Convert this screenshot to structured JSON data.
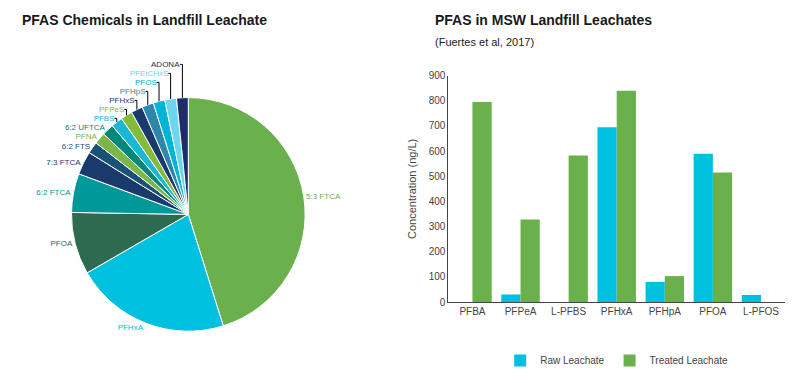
{
  "chart_data": [
    {
      "type": "pie",
      "title": "PFAS Chemicals in Landfill Leachate",
      "categories": [
        "5:3 FTCA",
        "PFHxA",
        "PFOA",
        "6:2 FTCA",
        "7:3 FTCA",
        "6:2 FTS",
        "PFNA",
        "6:2 UFTCA",
        "PFBS",
        "PFPeS",
        "PFHxS",
        "PFHpS",
        "PFOS",
        "PFEtCHxS",
        "ADONA"
      ],
      "values": [
        42,
        20,
        8,
        5,
        3,
        1.5,
        1.5,
        1.5,
        1.5,
        1.5,
        1.5,
        1.5,
        1.5,
        1.5,
        1.5
      ],
      "colors": [
        "#6ab04c",
        "#00c0e0",
        "#2d6a4f",
        "#009999",
        "#1a3a6b",
        "#1a5276",
        "#7ab648",
        "#00897b",
        "#1ab8d4",
        "#85bb3a",
        "#1a3a6b",
        "#2e86ab",
        "#00b4d8",
        "#6dd5ed",
        "#1a2e6b"
      ]
    },
    {
      "type": "bar",
      "title": "PFAS in MSW Landfill Leachates",
      "subtitle": "(Fuertes et al, 2017)",
      "ylabel": "Concentration (ng/L)",
      "categories": [
        "PFBA",
        "PFPeA",
        "L-PFBS",
        "PFHxA",
        "PFHpA",
        "PFOA",
        "L-PFOS"
      ],
      "series": [
        {
          "name": "Raw Leachate",
          "color": "#00c0e0",
          "values": [
            0,
            30,
            0,
            695,
            80,
            590,
            28
          ]
        },
        {
          "name": "Treated Leachate",
          "color": "#6ab04c",
          "values": [
            795,
            328,
            583,
            840,
            103,
            515,
            0
          ]
        }
      ],
      "ylim": [
        0,
        900
      ],
      "yticks": [
        0,
        100,
        200,
        300,
        400,
        500,
        600,
        700,
        800,
        900
      ],
      "grid": false,
      "legend": "bottom"
    }
  ]
}
